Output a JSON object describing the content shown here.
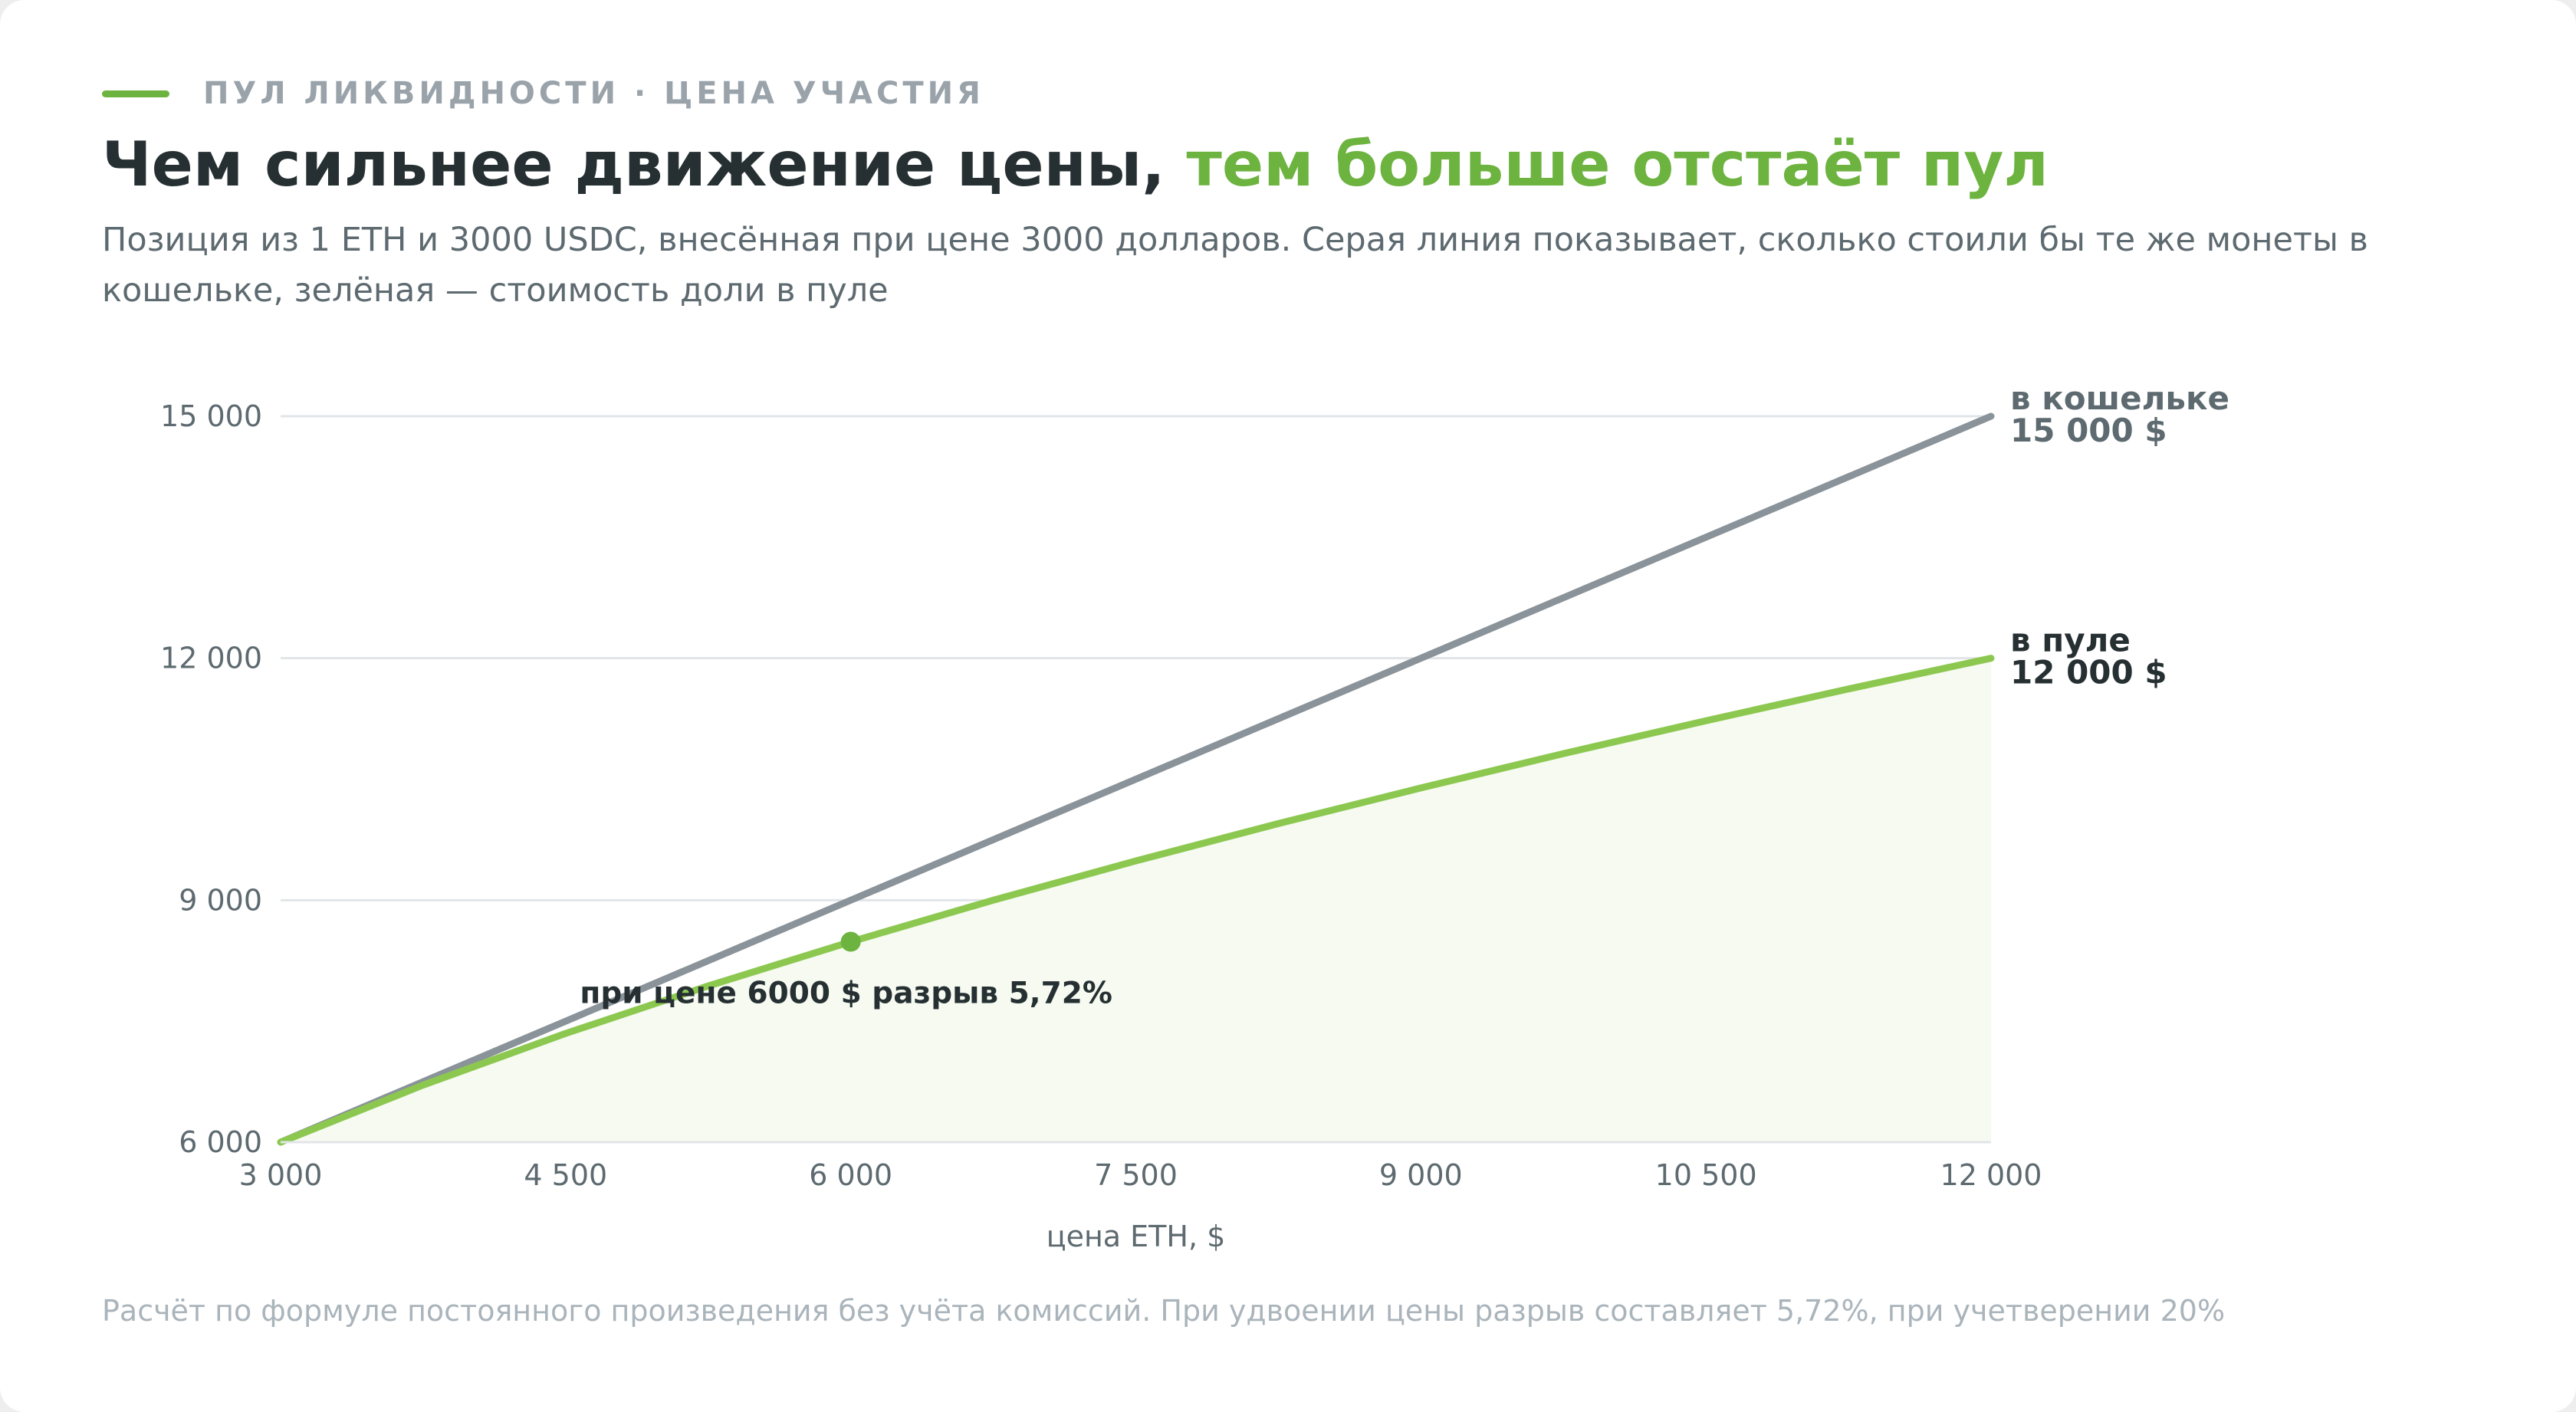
{
  "header": {
    "eyebrow": "ПУЛ ЛИКВИДНОСТИ · ЦЕНА УЧАСТИЯ",
    "headline_main": "Чем сильнее движение цены, ",
    "headline_accent": "тем больше отстаёт пул",
    "subtitle": "Позиция из 1 ETH и 3000 USDC, внесённая при цене 3000 долларов. Серая линия показывает, сколько стоили бы те же монеты в кошельке, зелёная — стоимость доли в пуле"
  },
  "colors": {
    "accent": "#6db33f",
    "pool_line": "#8cc850",
    "pool_fill": "#f6faf0",
    "wallet_line": "#8a9399",
    "grid": "#e1e5e8",
    "tick_text": "#5d6a70",
    "dark_text": "#263033"
  },
  "chart_data": {
    "type": "line",
    "xlabel": "цена ETH, $",
    "ylabel": "",
    "xlim": [
      3000,
      12000
    ],
    "ylim": [
      6000,
      15000
    ],
    "x_ticks": [
      3000,
      4500,
      6000,
      7500,
      9000,
      10500,
      12000
    ],
    "x_tick_labels": [
      "3 000",
      "4 500",
      "6 000",
      "7 500",
      "9 000",
      "10 500",
      "12 000"
    ],
    "y_ticks": [
      6000,
      9000,
      12000,
      15000
    ],
    "y_tick_labels": [
      "6 000",
      "9 000",
      "12 000",
      "15 000"
    ],
    "grid": "horizontal",
    "series": [
      {
        "key": "wallet",
        "label_name": "в кошельке",
        "label_value": "15 000 $",
        "x": [
          3000,
          12000
        ],
        "y": [
          6000,
          15000
        ]
      },
      {
        "key": "pool",
        "label_name": "в пуле",
        "label_value": "12 000 $",
        "x": [
          3000,
          3750,
          4500,
          5250,
          6000,
          6750,
          7500,
          8250,
          9000,
          9750,
          10500,
          11250,
          12000
        ],
        "y": [
          6000,
          6708,
          7348,
          7937,
          8485,
          9000,
          9487,
          9950,
          10392,
          10817,
          11225,
          11619,
          12000
        ],
        "filled": true
      }
    ],
    "annotation": {
      "x": 6000,
      "y": 8485,
      "text": "при цене 6000 $ разрыв 5,72%"
    }
  },
  "footnote": "Расчёт по формуле постоянного произведения без учёта комиссий. При удвоении цены разрыв составляет 5,72%, при учетверении 20%"
}
